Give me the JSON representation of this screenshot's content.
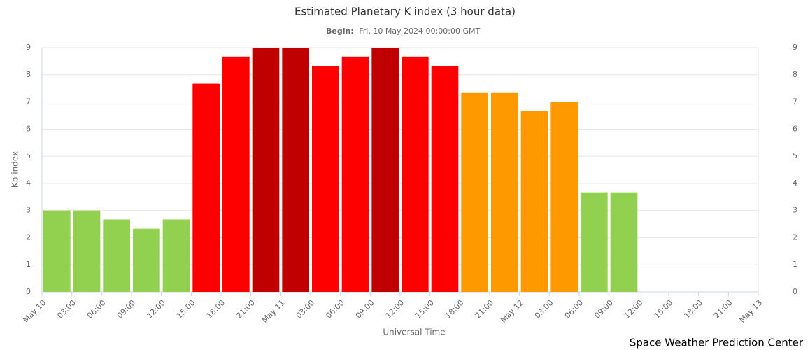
{
  "chart_data": {
    "type": "bar",
    "title": "Estimated Planetary K index (3 hour data)",
    "subtitle_label": "Begin:",
    "subtitle": "Fri, 10 May 2024 00:00:00 GMT",
    "y_label": "Kp index",
    "x_label": "Universal Time",
    "credit": "Space Weather Prediction Center",
    "x_labels": [
      "May 10",
      "03:00",
      "06:00",
      "09:00",
      "12:00",
      "15:00",
      "18:00",
      "21:00",
      "May 11",
      "03:00",
      "06:00",
      "09:00",
      "12:00",
      "15:00",
      "18:00",
      "21:00",
      "May 12",
      "03:00",
      "06:00",
      "09:00",
      "12:00",
      "15:00",
      "18:00",
      "21:00",
      "May 13"
    ],
    "values": [
      3,
      3,
      2.67,
      2.33,
      2.67,
      7.67,
      8.67,
      9,
      9,
      8.33,
      8.67,
      9,
      8.67,
      8.33,
      7.33,
      7.33,
      6.67,
      7,
      3.67,
      3.67
    ],
    "colors": [
      "#92d050",
      "#92d050",
      "#92d050",
      "#92d050",
      "#92d050",
      "#ff0000",
      "#ff0000",
      "#c00000",
      "#c00000",
      "#ff0000",
      "#ff0000",
      "#c00000",
      "#ff0000",
      "#ff0000",
      "#ff9900",
      "#ff9900",
      "#ff9900",
      "#ff9900",
      "#92d050",
      "#92d050"
    ],
    "ylim": [
      0,
      9
    ],
    "yticks": [
      0,
      1,
      2,
      3,
      4,
      5,
      6,
      7,
      8,
      9
    ],
    "grid": true
  }
}
